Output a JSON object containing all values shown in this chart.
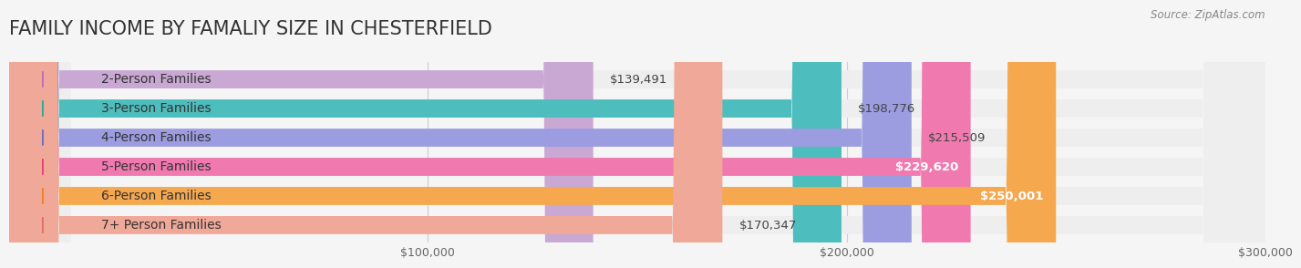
{
  "title": "FAMILY INCOME BY FAMALIY SIZE IN CHESTERFIELD",
  "source": "Source: ZipAtlas.com",
  "categories": [
    "2-Person Families",
    "3-Person Families",
    "4-Person Families",
    "5-Person Families",
    "6-Person Families",
    "7+ Person Families"
  ],
  "values": [
    139491,
    198776,
    215509,
    229620,
    250001,
    170347
  ],
  "bar_colors": [
    "#c9a8d4",
    "#4dbdbd",
    "#9b9de0",
    "#f07ab0",
    "#f5a84e",
    "#f0a898"
  ],
  "dot_colors": [
    "#c06db5",
    "#2aa89a",
    "#6b6ec7",
    "#e83d80",
    "#f08020",
    "#e07060"
  ],
  "value_labels": [
    "$139,491",
    "$198,776",
    "$215,509",
    "$229,620",
    "$250,001",
    "$170,347"
  ],
  "value_label_inside": [
    false,
    false,
    false,
    true,
    true,
    false
  ],
  "xmin": 0,
  "xmax": 300000,
  "xticks": [
    100000,
    200000,
    300000
  ],
  "xticklabels": [
    "$100,000",
    "$200,000",
    "$300,000"
  ],
  "background_color": "#f5f5f5",
  "bar_bg_color": "#eeeeee",
  "title_fontsize": 15,
  "label_fontsize": 10,
  "value_fontsize": 9.5
}
